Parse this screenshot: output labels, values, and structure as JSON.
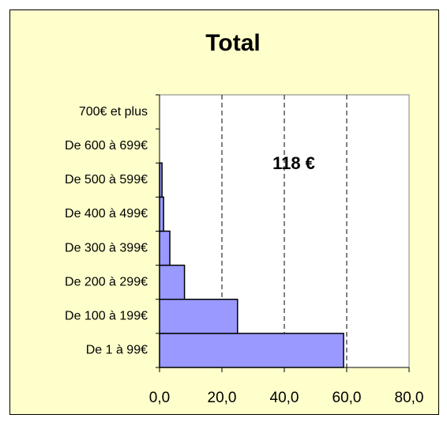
{
  "chart_data": {
    "type": "bar",
    "orientation": "horizontal",
    "title": "Total",
    "annotation": "118 €",
    "categories": [
      "De 1 à 99€",
      "De 100 à 199€",
      "De 200 à 299€",
      "De 300 à 399€",
      "De 400 à 499€",
      "De 500 à 599€",
      "De 600 à 699€",
      "700€ et plus"
    ],
    "values": [
      59,
      25,
      8,
      3.3,
      1.3,
      0.8,
      0,
      0
    ],
    "color": "#9999ff",
    "xlim": [
      0,
      80
    ],
    "xticks": [
      {
        "value": 0,
        "label": "0,0"
      },
      {
        "value": 20,
        "label": "20,0"
      },
      {
        "value": 40,
        "label": "40,0"
      },
      {
        "value": 60,
        "label": "60,0"
      },
      {
        "value": 80,
        "label": "80,0"
      }
    ],
    "grid": true
  }
}
